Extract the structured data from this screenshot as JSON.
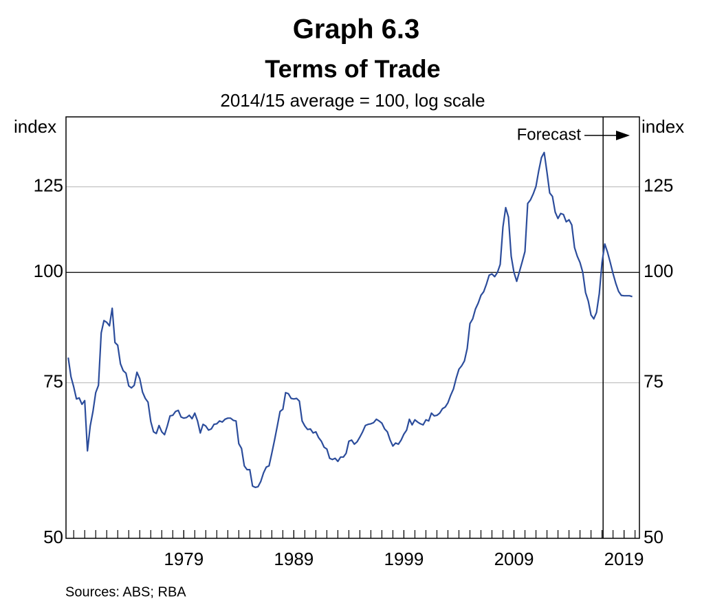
{
  "chart_data": {
    "type": "line",
    "title": "Graph 6.3",
    "subtitle": "Terms of Trade",
    "note": "2014/15 average = 100, log scale",
    "ylabel": "index",
    "y2label": "index",
    "source": "Sources: ABS; RBA",
    "annotation": "Forecast",
    "forecast_x": 2017.1,
    "log_scale": true,
    "ylim": [
      50,
      150
    ],
    "yticks": [
      50,
      75,
      100,
      125
    ],
    "y2lim": [
      50,
      150
    ],
    "y2ticks": [
      50,
      75,
      100,
      125
    ],
    "hline": 100,
    "grid": true,
    "xlim": [
      1968.3,
      2020.4
    ],
    "xticks": [
      1979,
      1989,
      1999,
      2009,
      2019
    ],
    "x": [
      1968.5,
      1968.75,
      1969,
      1969.25,
      1969.5,
      1969.75,
      1970,
      1970.25,
      1970.5,
      1970.75,
      1971,
      1971.25,
      1971.5,
      1971.75,
      1972,
      1972.25,
      1972.5,
      1972.75,
      1973,
      1973.25,
      1973.5,
      1973.75,
      1974,
      1974.25,
      1974.5,
      1974.75,
      1975,
      1975.25,
      1975.5,
      1975.75,
      1976,
      1976.25,
      1976.5,
      1976.75,
      1977,
      1977.25,
      1977.5,
      1977.75,
      1978,
      1978.25,
      1978.5,
      1978.75,
      1979,
      1979.25,
      1979.5,
      1979.75,
      1980,
      1980.25,
      1980.5,
      1980.75,
      1981,
      1981.25,
      1981.5,
      1981.75,
      1982,
      1982.25,
      1982.5,
      1982.75,
      1983,
      1983.25,
      1983.5,
      1983.75,
      1984,
      1984.25,
      1984.5,
      1984.75,
      1985,
      1985.25,
      1985.5,
      1985.75,
      1986,
      1986.25,
      1986.5,
      1986.75,
      1987,
      1987.25,
      1987.5,
      1987.75,
      1988,
      1988.25,
      1988.5,
      1988.75,
      1989,
      1989.25,
      1989.5,
      1989.75,
      1990,
      1990.25,
      1990.5,
      1990.75,
      1991,
      1991.25,
      1991.5,
      1991.75,
      1992,
      1992.25,
      1992.5,
      1992.75,
      1993,
      1993.25,
      1993.5,
      1993.75,
      1994,
      1994.25,
      1994.5,
      1994.75,
      1995,
      1995.25,
      1995.5,
      1995.75,
      1996,
      1996.25,
      1996.5,
      1996.75,
      1997,
      1997.25,
      1997.5,
      1997.75,
      1998,
      1998.25,
      1998.5,
      1998.75,
      1999,
      1999.25,
      1999.5,
      1999.75,
      2000,
      2000.25,
      2000.5,
      2000.75,
      2001,
      2001.25,
      2001.5,
      2001.75,
      2002,
      2002.25,
      2002.5,
      2002.75,
      2003,
      2003.25,
      2003.5,
      2003.75,
      2004,
      2004.25,
      2004.5,
      2004.75,
      2005,
      2005.25,
      2005.5,
      2005.75,
      2006,
      2006.25,
      2006.5,
      2006.75,
      2007,
      2007.25,
      2007.5,
      2007.75,
      2008,
      2008.25,
      2008.5,
      2008.75,
      2009,
      2009.25,
      2009.5,
      2009.75,
      2010,
      2010.25,
      2010.5,
      2010.75,
      2011,
      2011.25,
      2011.5,
      2011.75,
      2012,
      2012.25,
      2012.5,
      2012.75,
      2013,
      2013.25,
      2013.5,
      2013.75,
      2014,
      2014.25,
      2014.5,
      2014.75,
      2015,
      2015.25,
      2015.5,
      2015.75,
      2016,
      2016.25,
      2016.5,
      2016.75,
      2017,
      2017.25,
      2017.5,
      2017.75,
      2018,
      2018.25,
      2018.5,
      2018.75,
      2019,
      2019.25,
      2019.5,
      2019.75
    ],
    "series": [
      {
        "name": "Terms of Trade",
        "color": "#2b4c9b",
        "values": [
          80.1,
          76.2,
          74.2,
          71.9,
          72.1,
          70.9,
          71.6,
          62.8,
          67.0,
          69.6,
          73.1,
          74.5,
          85.4,
          88.2,
          87.8,
          87.0,
          91.1,
          83.3,
          82.7,
          78.8,
          77.4,
          76.9,
          74.4,
          74.0,
          74.5,
          77.1,
          75.8,
          73.2,
          72.0,
          71.3,
          67.8,
          66.0,
          65.7,
          67.1,
          66.0,
          65.5,
          67.0,
          68.8,
          68.9,
          69.6,
          69.8,
          68.6,
          68.4,
          68.5,
          68.9,
          68.3,
          69.3,
          67.9,
          65.8,
          67.3,
          67.0,
          66.3,
          66.5,
          67.3,
          67.4,
          67.9,
          67.7,
          68.2,
          68.4,
          68.4,
          68.0,
          67.9,
          64.0,
          63.2,
          60.4,
          59.8,
          59.8,
          57.3,
          57.1,
          57.2,
          58.0,
          59.3,
          60.2,
          60.4,
          62.4,
          64.6,
          67.0,
          69.6,
          70.0,
          73.1,
          72.9,
          72.0,
          71.9,
          72.0,
          71.5,
          67.9,
          67.0,
          66.4,
          66.5,
          65.8,
          66.0,
          65.0,
          64.4,
          63.4,
          63.1,
          61.6,
          61.4,
          61.6,
          61.1,
          61.8,
          61.8,
          62.4,
          64.4,
          64.6,
          63.9,
          64.3,
          65.1,
          66.0,
          67.1,
          67.3,
          67.4,
          67.6,
          68.2,
          67.9,
          67.5,
          66.5,
          66.0,
          64.6,
          63.6,
          64.1,
          63.9,
          64.6,
          65.6,
          66.3,
          68.2,
          67.2,
          68.1,
          67.7,
          67.4,
          67.2,
          68.1,
          67.9,
          69.3,
          68.8,
          68.9,
          69.3,
          70.1,
          70.4,
          71.2,
          72.6,
          73.8,
          75.9,
          77.7,
          78.4,
          79.4,
          82.0,
          87.5,
          88.6,
          90.9,
          92.3,
          94.2,
          95.1,
          97.0,
          99.3,
          99.6,
          98.9,
          100.0,
          102.1,
          112.6,
          118.4,
          115.5,
          104.3,
          100.0,
          97.7,
          100.2,
          102.8,
          105.6,
          119.7,
          120.8,
          122.7,
          125.1,
          130.3,
          134.9,
          136.7,
          129.9,
          123.0,
          121.9,
          117.0,
          115.1,
          116.6,
          116.3,
          114.1,
          114.7,
          113.2,
          106.7,
          104.3,
          102.6,
          100.0,
          94.9,
          92.8,
          89.5,
          88.6,
          90.1,
          94.6,
          102.6,
          107.7,
          105.4,
          102.6,
          99.7,
          97.2,
          95.2,
          94.2,
          94.1,
          94.1,
          94.1,
          93.9
        ]
      }
    ]
  }
}
